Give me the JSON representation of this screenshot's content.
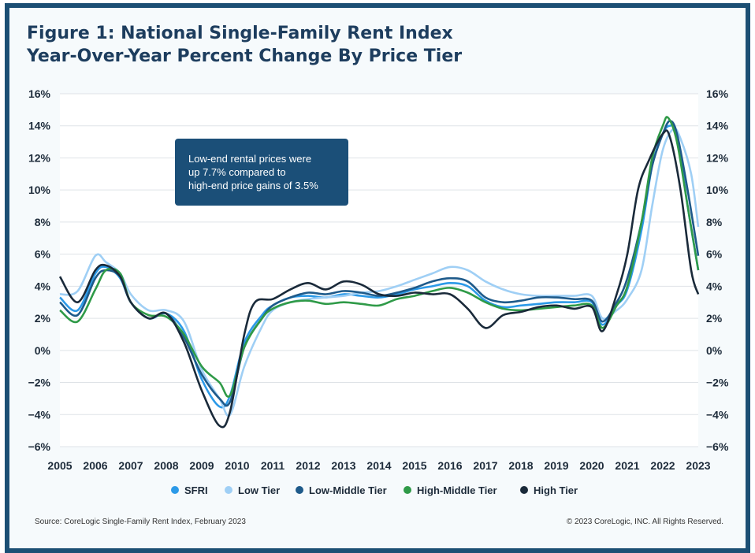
{
  "title": {
    "line1": "Figure 1: National Single-Family Rent Index",
    "line2": "Year-Over-Year Percent Change By Price Tier"
  },
  "annotation": {
    "lines": [
      "Low-end rental prices were",
      "up 7.7% compared to",
      "high-end price gains of 3.5%"
    ]
  },
  "source": "Source: CoreLogic Single-Family Rent Index, February 2023",
  "copyright": "© 2023 CoreLogic, INC. All Rights Reserved.",
  "colors": {
    "frame": "#1c4f74",
    "title": "#1d3d5e",
    "annotation_bg": "#1b4f78"
  },
  "chart_data": {
    "type": "line",
    "ylim": [
      -6,
      16
    ],
    "xlim": [
      2005,
      2023
    ],
    "y_ticks": [
      "−6%",
      "−4%",
      "−2%",
      "0%",
      "2%",
      "4%",
      "6%",
      "8%",
      "10%",
      "12%",
      "14%",
      "16%"
    ],
    "x_ticks": [
      "2005",
      "2006",
      "2007",
      "2008",
      "2009",
      "2010",
      "2011",
      "2012",
      "2013",
      "2014",
      "2015",
      "2016",
      "2017",
      "2018",
      "2019",
      "2020",
      "2021",
      "2022",
      "2023"
    ],
    "grid": true,
    "legend_position": "bottom",
    "series": [
      {
        "name": "SFRI",
        "color": "#2c9ae8",
        "points": [
          [
            2005,
            3.3
          ],
          [
            2005.5,
            2.5
          ],
          [
            2006,
            4.8
          ],
          [
            2006.3,
            5.2
          ],
          [
            2006.7,
            4.5
          ],
          [
            2007,
            3.0
          ],
          [
            2007.5,
            2.0
          ],
          [
            2008,
            2.3
          ],
          [
            2008.5,
            1.2
          ],
          [
            2009,
            -1.8
          ],
          [
            2009.5,
            -3.5
          ],
          [
            2009.8,
            -2.8
          ],
          [
            2010.2,
            0.5
          ],
          [
            2010.7,
            2.2
          ],
          [
            2011,
            2.8
          ],
          [
            2011.5,
            3.3
          ],
          [
            2012,
            3.4
          ],
          [
            2012.5,
            3.3
          ],
          [
            2013,
            3.5
          ],
          [
            2013.5,
            3.4
          ],
          [
            2014,
            3.3
          ],
          [
            2014.5,
            3.5
          ],
          [
            2015,
            3.8
          ],
          [
            2015.5,
            4.0
          ],
          [
            2016,
            4.2
          ],
          [
            2016.5,
            4.0
          ],
          [
            2017,
            3.1
          ],
          [
            2017.5,
            2.7
          ],
          [
            2018,
            2.8
          ],
          [
            2018.5,
            2.9
          ],
          [
            2019,
            3.0
          ],
          [
            2019.5,
            3.0
          ],
          [
            2020,
            3.0
          ],
          [
            2020.3,
            1.6
          ],
          [
            2020.7,
            2.8
          ],
          [
            2021,
            3.8
          ],
          [
            2021.4,
            7.5
          ],
          [
            2021.7,
            11.5
          ],
          [
            2022,
            13.5
          ],
          [
            2022.2,
            14.0
          ],
          [
            2022.4,
            13.5
          ],
          [
            2022.7,
            9.0
          ],
          [
            2023,
            5.0
          ]
        ]
      },
      {
        "name": "Low Tier",
        "color": "#9fcff5",
        "points": [
          [
            2005,
            3.5
          ],
          [
            2005.5,
            3.7
          ],
          [
            2006,
            5.9
          ],
          [
            2006.3,
            5.5
          ],
          [
            2006.7,
            4.8
          ],
          [
            2007,
            3.5
          ],
          [
            2007.5,
            2.5
          ],
          [
            2008,
            2.5
          ],
          [
            2008.5,
            1.8
          ],
          [
            2009,
            -1.2
          ],
          [
            2009.5,
            -3.0
          ],
          [
            2009.8,
            -4.0
          ],
          [
            2010.2,
            -1.0
          ],
          [
            2010.7,
            1.5
          ],
          [
            2011,
            2.5
          ],
          [
            2011.5,
            3.0
          ],
          [
            2012,
            3.2
          ],
          [
            2012.5,
            3.3
          ],
          [
            2013,
            3.4
          ],
          [
            2013.5,
            3.6
          ],
          [
            2014,
            3.7
          ],
          [
            2014.5,
            4.0
          ],
          [
            2015,
            4.4
          ],
          [
            2015.5,
            4.8
          ],
          [
            2016,
            5.2
          ],
          [
            2016.5,
            5.0
          ],
          [
            2017,
            4.3
          ],
          [
            2017.5,
            3.8
          ],
          [
            2018,
            3.5
          ],
          [
            2018.5,
            3.4
          ],
          [
            2019,
            3.4
          ],
          [
            2019.5,
            3.4
          ],
          [
            2020,
            3.4
          ],
          [
            2020.3,
            2.0
          ],
          [
            2020.7,
            2.5
          ],
          [
            2021,
            3.2
          ],
          [
            2021.4,
            5.0
          ],
          [
            2021.7,
            9.0
          ],
          [
            2022,
            12.5
          ],
          [
            2022.3,
            13.8
          ],
          [
            2022.5,
            13.2
          ],
          [
            2022.8,
            11.0
          ],
          [
            2023,
            7.7
          ]
        ]
      },
      {
        "name": "Low-Middle Tier",
        "color": "#1e5a8a",
        "points": [
          [
            2005,
            3.0
          ],
          [
            2005.5,
            2.2
          ],
          [
            2006,
            4.5
          ],
          [
            2006.3,
            5.0
          ],
          [
            2006.7,
            4.6
          ],
          [
            2007,
            3.0
          ],
          [
            2007.5,
            2.0
          ],
          [
            2008,
            2.3
          ],
          [
            2008.5,
            0.8
          ],
          [
            2009,
            -1.5
          ],
          [
            2009.5,
            -3.0
          ],
          [
            2009.8,
            -3.2
          ],
          [
            2010.2,
            0.2
          ],
          [
            2010.7,
            2.0
          ],
          [
            2011,
            2.8
          ],
          [
            2011.5,
            3.3
          ],
          [
            2012,
            3.6
          ],
          [
            2012.5,
            3.5
          ],
          [
            2013,
            3.7
          ],
          [
            2013.5,
            3.6
          ],
          [
            2014,
            3.4
          ],
          [
            2014.5,
            3.6
          ],
          [
            2015,
            3.9
          ],
          [
            2015.5,
            4.3
          ],
          [
            2016,
            4.5
          ],
          [
            2016.5,
            4.3
          ],
          [
            2017,
            3.3
          ],
          [
            2017.5,
            3.0
          ],
          [
            2018,
            3.1
          ],
          [
            2018.5,
            3.3
          ],
          [
            2019,
            3.3
          ],
          [
            2019.5,
            3.2
          ],
          [
            2020,
            3.1
          ],
          [
            2020.3,
            1.8
          ],
          [
            2020.7,
            3.0
          ],
          [
            2021,
            4.5
          ],
          [
            2021.4,
            8.0
          ],
          [
            2021.7,
            11.5
          ],
          [
            2022,
            13.5
          ],
          [
            2022.2,
            14.3
          ],
          [
            2022.4,
            13.5
          ],
          [
            2022.7,
            10.0
          ],
          [
            2023,
            5.9
          ]
        ]
      },
      {
        "name": "High-Middle Tier",
        "color": "#2f9a48",
        "points": [
          [
            2005,
            2.5
          ],
          [
            2005.5,
            1.8
          ],
          [
            2006,
            3.8
          ],
          [
            2006.3,
            5.0
          ],
          [
            2006.7,
            4.8
          ],
          [
            2007,
            3.0
          ],
          [
            2007.5,
            2.2
          ],
          [
            2008,
            2.1
          ],
          [
            2008.5,
            1.0
          ],
          [
            2009,
            -1.0
          ],
          [
            2009.5,
            -2.0
          ],
          [
            2009.8,
            -2.8
          ],
          [
            2010.2,
            0.2
          ],
          [
            2010.7,
            2.0
          ],
          [
            2011,
            2.6
          ],
          [
            2011.5,
            3.0
          ],
          [
            2012,
            3.1
          ],
          [
            2012.5,
            2.9
          ],
          [
            2013,
            3.0
          ],
          [
            2013.5,
            2.9
          ],
          [
            2014,
            2.8
          ],
          [
            2014.5,
            3.2
          ],
          [
            2015,
            3.4
          ],
          [
            2015.5,
            3.7
          ],
          [
            2016,
            3.9
          ],
          [
            2016.5,
            3.6
          ],
          [
            2017,
            3.0
          ],
          [
            2017.5,
            2.6
          ],
          [
            2018,
            2.5
          ],
          [
            2018.5,
            2.6
          ],
          [
            2019,
            2.7
          ],
          [
            2019.5,
            2.8
          ],
          [
            2020,
            2.8
          ],
          [
            2020.3,
            1.4
          ],
          [
            2020.7,
            2.8
          ],
          [
            2021,
            4.0
          ],
          [
            2021.4,
            8.0
          ],
          [
            2021.7,
            12.0
          ],
          [
            2022,
            14.0
          ],
          [
            2022.15,
            14.5
          ],
          [
            2022.4,
            13.0
          ],
          [
            2022.7,
            9.0
          ],
          [
            2023,
            5.0
          ]
        ]
      },
      {
        "name": "High Tier",
        "color": "#1a2a3a",
        "points": [
          [
            2005,
            4.6
          ],
          [
            2005.5,
            3.0
          ],
          [
            2006,
            5.0
          ],
          [
            2006.3,
            5.3
          ],
          [
            2006.7,
            4.6
          ],
          [
            2007,
            3.0
          ],
          [
            2007.5,
            2.0
          ],
          [
            2008,
            2.3
          ],
          [
            2008.5,
            0.5
          ],
          [
            2009,
            -2.5
          ],
          [
            2009.5,
            -4.7
          ],
          [
            2009.8,
            -3.8
          ],
          [
            2010.2,
            1.0
          ],
          [
            2010.5,
            3.0
          ],
          [
            2011,
            3.2
          ],
          [
            2011.5,
            3.8
          ],
          [
            2012,
            4.2
          ],
          [
            2012.5,
            3.8
          ],
          [
            2013,
            4.3
          ],
          [
            2013.5,
            4.1
          ],
          [
            2014,
            3.5
          ],
          [
            2014.5,
            3.4
          ],
          [
            2015,
            3.6
          ],
          [
            2015.5,
            3.5
          ],
          [
            2016,
            3.5
          ],
          [
            2016.5,
            2.6
          ],
          [
            2017,
            1.4
          ],
          [
            2017.5,
            2.2
          ],
          [
            2018,
            2.4
          ],
          [
            2018.5,
            2.7
          ],
          [
            2019,
            2.8
          ],
          [
            2019.5,
            2.6
          ],
          [
            2020,
            2.7
          ],
          [
            2020.3,
            1.2
          ],
          [
            2020.7,
            3.5
          ],
          [
            2021,
            6.0
          ],
          [
            2021.3,
            10.0
          ],
          [
            2021.6,
            11.8
          ],
          [
            2022,
            13.5
          ],
          [
            2022.2,
            13.3
          ],
          [
            2022.5,
            10.0
          ],
          [
            2022.8,
            5.0
          ],
          [
            2023,
            3.5
          ]
        ]
      }
    ]
  }
}
